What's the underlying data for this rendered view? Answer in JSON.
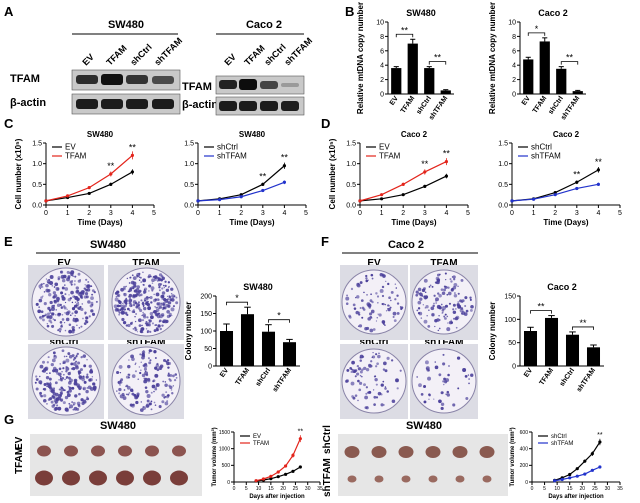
{
  "panel_labels": {
    "A": "A",
    "B": "B",
    "C": "C",
    "D": "D",
    "E": "E",
    "F": "F",
    "G": "G"
  },
  "panelA": {
    "left_group": "SW480",
    "right_group": "Caco 2",
    "lanes": [
      "EV",
      "TFAM",
      "shCtrl",
      "shTFAM"
    ],
    "row1_label": "TFAM",
    "row2_label": "β-actin"
  },
  "chart_data": [
    {
      "id": "B-left",
      "type": "bar",
      "title": "SW480",
      "ylabel": "Relative mtDNA copy number",
      "categories": [
        "EV",
        "TFAM",
        "shCtrl",
        "shTFAM"
      ],
      "values": [
        3.6,
        7.0,
        3.6,
        0.5
      ],
      "errors": [
        0.2,
        0.6,
        0.2,
        0.1
      ],
      "ylim": [
        0,
        10
      ],
      "yticks": [
        "0",
        "2",
        "4",
        "6",
        "8",
        "10"
      ],
      "annotations": [
        {
          "text": "**",
          "from": 0,
          "to": 1
        },
        {
          "text": "**",
          "from": 2,
          "to": 3
        }
      ]
    },
    {
      "id": "B-right",
      "type": "bar",
      "title": "Caco 2",
      "ylabel": "Relative mtDNA copy number",
      "categories": [
        "EV",
        "TFAM",
        "shCtrl",
        "shTFAM"
      ],
      "values": [
        4.8,
        7.3,
        3.5,
        0.4
      ],
      "errors": [
        0.3,
        0.5,
        0.3,
        0.1
      ],
      "ylim": [
        0,
        10
      ],
      "yticks": [
        "0",
        "2",
        "4",
        "6",
        "8",
        "10"
      ],
      "annotations": [
        {
          "text": "*",
          "from": 0,
          "to": 1
        },
        {
          "text": "**",
          "from": 2,
          "to": 3
        }
      ]
    },
    {
      "id": "C-left",
      "type": "line",
      "title": "SW480",
      "xlabel": "Time (Days)",
      "ylabel": "Cell number (x10⁵)",
      "x": [
        0,
        1,
        2,
        3,
        4
      ],
      "xlim": [
        0,
        5
      ],
      "xticks": [
        "0",
        "1",
        "2",
        "3",
        "4",
        "5"
      ],
      "ylim": [
        0,
        1.5
      ],
      "yticks": [
        "0.0",
        "0.5",
        "1.0",
        "1.5"
      ],
      "series": [
        {
          "name": "EV",
          "color": "#000000",
          "values": [
            0.1,
            0.18,
            0.28,
            0.5,
            0.8
          ]
        },
        {
          "name": "TFAM",
          "color": "#e3241b",
          "values": [
            0.1,
            0.22,
            0.42,
            0.75,
            1.2
          ]
        }
      ],
      "stars": [
        {
          "text": "**",
          "x": 3
        },
        {
          "text": "**",
          "x": 4
        }
      ]
    },
    {
      "id": "C-right",
      "type": "line",
      "title": "SW480",
      "xlabel": "Time (Days)",
      "ylabel": "",
      "x": [
        0,
        1,
        2,
        3,
        4
      ],
      "xlim": [
        0,
        5
      ],
      "xticks": [
        "0",
        "1",
        "2",
        "3",
        "4",
        "5"
      ],
      "ylim": [
        0,
        1.5
      ],
      "yticks": [
        "0.0",
        "0.5",
        "1.0",
        "1.5"
      ],
      "series": [
        {
          "name": "shCtrl",
          "color": "#000000",
          "values": [
            0.1,
            0.15,
            0.25,
            0.5,
            0.95
          ]
        },
        {
          "name": "shTFAM",
          "color": "#2233cc",
          "values": [
            0.1,
            0.13,
            0.2,
            0.35,
            0.55
          ]
        }
      ],
      "stars": [
        {
          "text": "**",
          "x": 3
        },
        {
          "text": "**",
          "x": 4
        }
      ]
    },
    {
      "id": "D-left",
      "type": "line",
      "title": "Caco 2",
      "xlabel": "Time (Days)",
      "ylabel": "Cell number (x10⁵)",
      "x": [
        0,
        1,
        2,
        3,
        4
      ],
      "xlim": [
        0,
        5
      ],
      "xticks": [
        "0",
        "1",
        "2",
        "3",
        "4",
        "5"
      ],
      "ylim": [
        0,
        1.5
      ],
      "yticks": [
        "0.0",
        "0.5",
        "1.0",
        "1.5"
      ],
      "series": [
        {
          "name": "EV",
          "color": "#000000",
          "values": [
            0.1,
            0.15,
            0.25,
            0.45,
            0.7
          ]
        },
        {
          "name": "TFAM",
          "color": "#e3241b",
          "values": [
            0.1,
            0.25,
            0.5,
            0.8,
            1.05
          ]
        }
      ],
      "stars": [
        {
          "text": "**",
          "x": 3
        },
        {
          "text": "**",
          "x": 4
        }
      ]
    },
    {
      "id": "D-right",
      "type": "line",
      "title": "Caco 2",
      "xlabel": "Time (Days)",
      "ylabel": "",
      "x": [
        0,
        1,
        2,
        3,
        4
      ],
      "xlim": [
        0,
        5
      ],
      "xticks": [
        "0",
        "1",
        "2",
        "3",
        "4",
        "5"
      ],
      "ylim": [
        0,
        1.5
      ],
      "yticks": [
        "0.0",
        "0.5",
        "1.0",
        "1.5"
      ],
      "series": [
        {
          "name": "shCtrl",
          "color": "#000000",
          "values": [
            0.1,
            0.15,
            0.3,
            0.55,
            0.85
          ]
        },
        {
          "name": "shTFAM",
          "color": "#2233cc",
          "values": [
            0.1,
            0.14,
            0.25,
            0.4,
            0.5
          ]
        }
      ],
      "stars": [
        {
          "text": "**",
          "x": 3
        },
        {
          "text": "**",
          "x": 4
        }
      ]
    },
    {
      "id": "E-bar",
      "type": "bar",
      "title": "SW480",
      "ylabel": "Colony number",
      "categories": [
        "EV",
        "TFAM",
        "shCtrl",
        "shTFAM"
      ],
      "values": [
        100,
        148,
        98,
        68
      ],
      "errors": [
        20,
        20,
        20,
        8
      ],
      "ylim": [
        0,
        200
      ],
      "yticks": [
        "0",
        "50",
        "100",
        "150",
        "200"
      ],
      "annotations": [
        {
          "text": "*",
          "from": 0,
          "to": 1
        },
        {
          "text": "*",
          "from": 2,
          "to": 3
        }
      ]
    },
    {
      "id": "F-bar",
      "type": "bar",
      "title": "Caco 2",
      "ylabel": "Colony number",
      "categories": [
        "EV",
        "TFAM",
        "shCtrl",
        "shTFAM"
      ],
      "values": [
        75,
        103,
        67,
        40
      ],
      "errors": [
        8,
        5,
        6,
        5
      ],
      "ylim": [
        0,
        150
      ],
      "yticks": [
        "0",
        "50",
        "100",
        "150"
      ],
      "annotations": [
        {
          "text": "**",
          "from": 0,
          "to": 1
        },
        {
          "text": "**",
          "from": 2,
          "to": 3
        }
      ]
    },
    {
      "id": "G-left",
      "type": "line",
      "title": "",
      "xlabel": "Days after injection",
      "ylabel": "Tumor volume (mm³)",
      "x": [
        9,
        12,
        15,
        18,
        21,
        24,
        27
      ],
      "xlim": [
        0,
        35
      ],
      "xticks": [
        "0",
        "5",
        "10",
        "15",
        "20",
        "25",
        "30",
        "35"
      ],
      "ylim": [
        0,
        1500
      ],
      "yticks": [
        "0",
        "500",
        "1000",
        "1500"
      ],
      "series": [
        {
          "name": "EV",
          "color": "#000000",
          "values": [
            30,
            60,
            100,
            160,
            230,
            320,
            450
          ]
        },
        {
          "name": "TFAM",
          "color": "#e3241b",
          "values": [
            40,
            90,
            170,
            300,
            480,
            800,
            1300
          ]
        }
      ],
      "stars": [
        {
          "text": "**",
          "x": 27
        }
      ]
    },
    {
      "id": "G-right",
      "type": "line",
      "title": "",
      "xlabel": "Days after injection",
      "ylabel": "Tumor volume (mm³)",
      "x": [
        9,
        12,
        15,
        18,
        21,
        24,
        27
      ],
      "xlim": [
        0,
        35
      ],
      "xticks": [
        "0",
        "5",
        "10",
        "15",
        "20",
        "25",
        "30",
        "35"
      ],
      "ylim": [
        0,
        600
      ],
      "yticks": [
        "0",
        "200",
        "400",
        "600"
      ],
      "series": [
        {
          "name": "shCtrl",
          "color": "#000000",
          "values": [
            20,
            50,
            90,
            160,
            250,
            340,
            480
          ]
        },
        {
          "name": "shTFAM",
          "color": "#2233cc",
          "values": [
            15,
            30,
            50,
            70,
            95,
            140,
            180
          ]
        }
      ],
      "stars": [
        {
          "text": "**",
          "x": 27
        }
      ]
    }
  ],
  "panelE": {
    "group": "SW480",
    "labels": [
      "EV",
      "TFAM",
      "shCtrl",
      "shTFAM"
    ]
  },
  "panelF": {
    "group": "Caco 2",
    "labels": [
      "EV",
      "TFAM",
      "shCtrl",
      "shTFAM"
    ]
  },
  "panelG": {
    "left_title": "SW480",
    "right_title": "SW480",
    "left_rows": [
      "TFAM",
      "EV"
    ],
    "right_rows": [
      "shTFAM",
      "shCtrl"
    ]
  }
}
